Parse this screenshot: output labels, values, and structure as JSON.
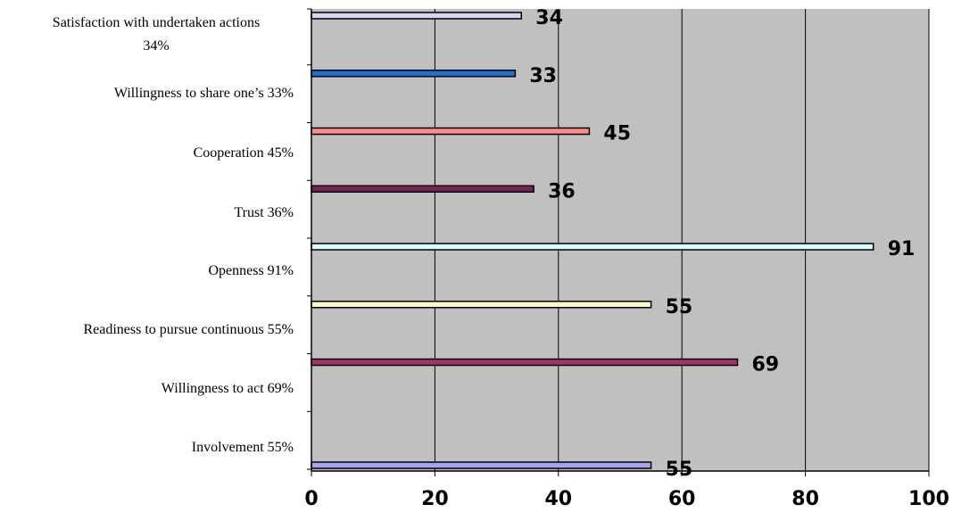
{
  "chart_data": {
    "type": "bar",
    "orientation": "horizontal",
    "categories": [
      [
        "Satisfaction with undertaken actions",
        "34%"
      ],
      [
        "Willingness to share one’s  33%"
      ],
      [
        "Cooperation 45%"
      ],
      [
        "Trust 36%"
      ],
      [
        "Openness 91%"
      ],
      [
        "Readiness to pursue continuous  55%"
      ],
      [
        "Willingness to act 69%"
      ],
      [
        "Involvement 55%"
      ]
    ],
    "values": [
      34,
      33,
      45,
      36,
      91,
      55,
      69,
      55
    ],
    "data_labels": [
      "34",
      "33",
      "45",
      "36",
      "91",
      "55",
      "69",
      "55"
    ],
    "bar_colors": [
      "#d6d6f2",
      "#1f6fd8",
      "#ff8c8c",
      "#7a1f5a",
      "#d8fbfb",
      "#fbfbc8",
      "#a3336b",
      "#a3a3f0"
    ],
    "xlim": [
      0,
      100
    ],
    "xticks": [
      "0",
      "20",
      "40",
      "60",
      "80",
      "100"
    ],
    "plot_background": "#c0c0c0",
    "grid": true,
    "title": "",
    "xlabel": "",
    "ylabel": ""
  }
}
